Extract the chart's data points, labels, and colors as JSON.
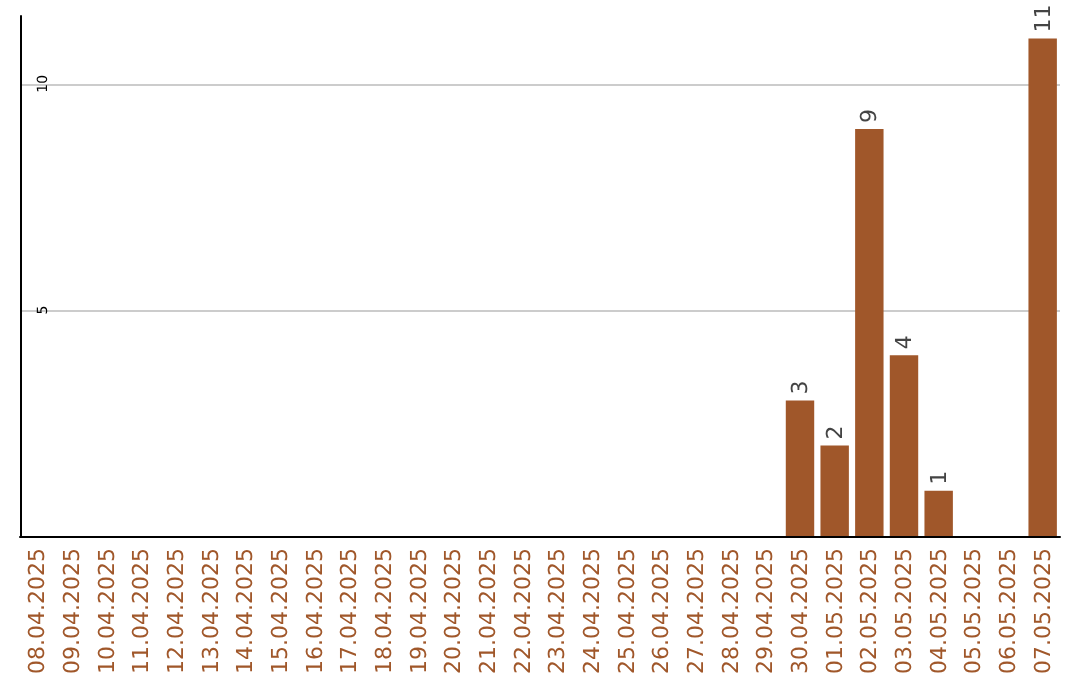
{
  "chart_data": {
    "type": "bar",
    "categories": [
      "08.04.2025",
      "09.04.2025",
      "10.04.2025",
      "11.04.2025",
      "12.04.2025",
      "13.04.2025",
      "14.04.2025",
      "15.04.2025",
      "16.04.2025",
      "17.04.2025",
      "18.04.2025",
      "19.04.2025",
      "20.04.2025",
      "21.04.2025",
      "22.04.2025",
      "23.04.2025",
      "24.04.2025",
      "25.04.2025",
      "26.04.2025",
      "27.04.2025",
      "28.04.2025",
      "29.04.2025",
      "30.04.2025",
      "01.05.2025",
      "02.05.2025",
      "03.05.2025",
      "04.05.2025",
      "05.05.2025",
      "06.05.2025",
      "07.05.2025"
    ],
    "values": [
      0,
      0,
      0,
      0,
      0,
      0,
      0,
      0,
      0,
      0,
      0,
      0,
      0,
      0,
      0,
      0,
      0,
      0,
      0,
      0,
      0,
      0,
      3,
      2,
      9,
      4,
      1,
      0,
      0,
      11
    ],
    "value_labels": [
      null,
      null,
      null,
      null,
      null,
      null,
      null,
      null,
      null,
      null,
      null,
      null,
      null,
      null,
      null,
      null,
      null,
      null,
      null,
      null,
      null,
      null,
      "3",
      "2",
      "9",
      "4",
      "1",
      null,
      null,
      "11"
    ],
    "color": "#a0572a",
    "ylim": [
      0,
      11.5
    ],
    "yticks": [
      5,
      10
    ],
    "grid": "y"
  }
}
